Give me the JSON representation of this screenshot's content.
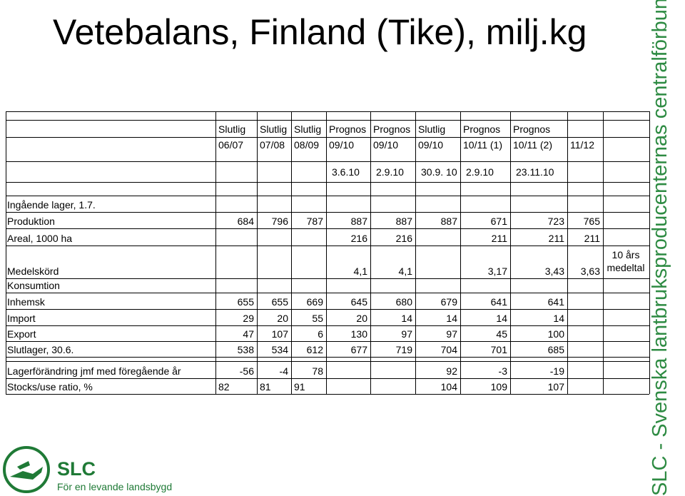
{
  "title": "Vetebalans, Finland (Tike), milj.kg",
  "sidebar_text": "SLC - Svenska lantbruksproducenternas centralförbund",
  "logo": {
    "name": "SLC",
    "tagline": "För en levande landsbygd"
  },
  "table": {
    "header_status": [
      "Slutlig",
      "Slutlig",
      "Slutlig",
      "Prognos",
      "Prognos",
      "Slutlig",
      "Prognos",
      "Prognos",
      ""
    ],
    "header_year": [
      "06/07",
      "07/08",
      "08/09",
      "09/10",
      "09/10",
      "09/10",
      "10/11 (1)",
      "10/11 (2)",
      "11/12"
    ],
    "header_date": [
      "",
      "",
      "",
      "3.6.10",
      "2.9.10",
      "30.9. 10",
      "2.9.10",
      "23.11.10",
      ""
    ],
    "rows": [
      {
        "label": "Ingående lager, 1.7.",
        "values": [
          "",
          "",
          "",
          "",
          "",
          "",
          "",
          "",
          ""
        ],
        "extra": ""
      },
      {
        "label": "Produktion",
        "values": [
          "684",
          "796",
          "787",
          "887",
          "887",
          "887",
          "671",
          "723",
          "765"
        ],
        "extra": ""
      },
      {
        "label": "Areal, 1000 ha",
        "values": [
          "",
          "",
          "",
          "216",
          "216",
          "",
          "211",
          "211",
          "211"
        ],
        "extra": ""
      },
      {
        "label": "Medelskörd",
        "values": [
          "",
          "",
          "",
          "4,1",
          "4,1",
          "",
          "3,17",
          "3,43",
          "3,63"
        ],
        "extra": "10 års medeltal"
      },
      {
        "label": "Konsumtion",
        "values": [
          "",
          "",
          "",
          "",
          "",
          "",
          "",
          "",
          ""
        ],
        "extra": ""
      },
      {
        "label": "Inhemsk",
        "values": [
          "655",
          "655",
          "669",
          "645",
          "680",
          "679",
          "641",
          "641",
          ""
        ],
        "extra": ""
      },
      {
        "label": "Import",
        "values": [
          "29",
          "20",
          "55",
          "20",
          "14",
          "14",
          "14",
          "14",
          ""
        ],
        "extra": ""
      },
      {
        "label": "Export",
        "values": [
          "47",
          "107",
          "6",
          "130",
          "97",
          "97",
          "45",
          "100",
          ""
        ],
        "extra": ""
      },
      {
        "label": "Slutlager, 30.6.",
        "values": [
          "538",
          "534",
          "612",
          "677",
          "719",
          "704",
          "701",
          "685",
          ""
        ],
        "extra": ""
      },
      {
        "label": "Lagerförändring jmf med föregående år",
        "values": [
          "-56",
          "-4",
          "78",
          "",
          "",
          "92",
          "-3",
          "-19",
          ""
        ],
        "extra": ""
      },
      {
        "label": "Stocks/use ratio, %",
        "values": [
          "82",
          "81",
          "91",
          "",
          "",
          "104",
          "109",
          "107",
          ""
        ],
        "extra": ""
      }
    ]
  }
}
